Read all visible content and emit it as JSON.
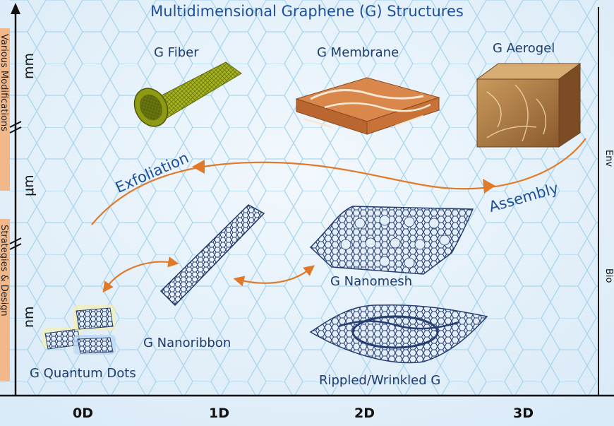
{
  "title": "Multidimensional Graphene (G) Structures",
  "y_axis_units": [
    "mm",
    "μm",
    "nm"
  ],
  "x_axis_ticks": [
    "0D",
    "1D",
    "2D",
    "3D"
  ],
  "structures": {
    "fiber": "G Fiber",
    "membrane": "G Membrane",
    "aerogel": "G Aerogel",
    "nanoribbon": "G Nanoribbon",
    "nanomesh": "G Nanomesh",
    "quantum_dots": "G Quantum Dots",
    "rippled": "Rippled/Wrinkled G"
  },
  "processes": {
    "exfoliation": "Exfoliation",
    "assembly": "Assembly"
  },
  "left_tab_texts": [
    "Various Modifications",
    "Strategies & Design"
  ],
  "right_edge_fragments": [
    "Env",
    "Bio"
  ],
  "colors": {
    "background": "#e7f1fb",
    "hex_grid": "#a9d6ee",
    "arrow": "#e07a2a",
    "tab": "#f3b88a",
    "title": "#1d4f9a"
  }
}
